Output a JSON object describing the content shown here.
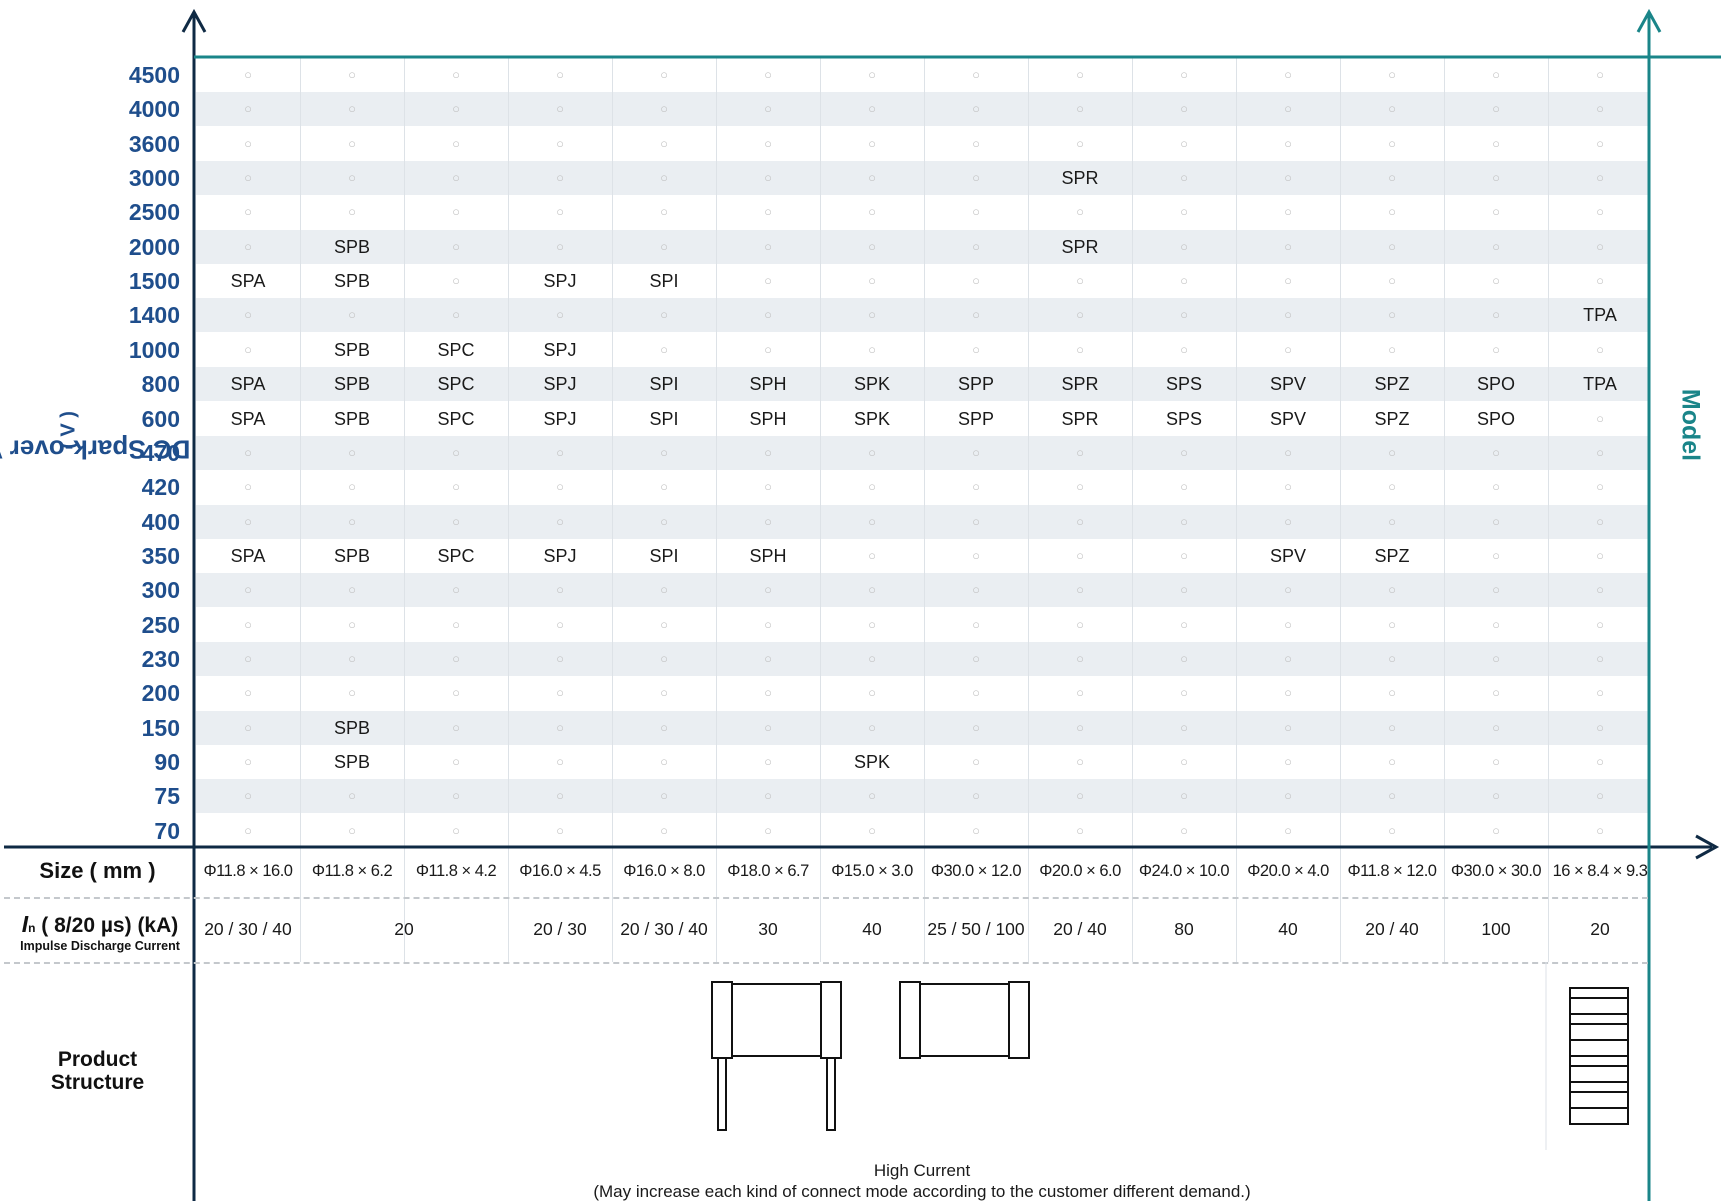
{
  "chart_data": {
    "type": "table",
    "y_title": "DC Spark-over Voltage",
    "y_unit": "( V )",
    "right_title": "Model",
    "voltages": [
      "4500",
      "4000",
      "3600",
      "3000",
      "2500",
      "2000",
      "1500",
      "1400",
      "1000",
      "800",
      "600",
      "470",
      "420",
      "400",
      "350",
      "300",
      "250",
      "230",
      "200",
      "150",
      "90",
      "75",
      "70"
    ],
    "models": [
      "SPA",
      "SPB",
      "SPC",
      "SPJ",
      "SPI",
      "SPH",
      "SPK",
      "SPP",
      "SPR",
      "SPS",
      "SPV",
      "SPZ",
      "SPO",
      "TPA"
    ],
    "availability": {
      "SPA": [
        "1500",
        "800",
        "600",
        "350"
      ],
      "SPB": [
        "2000",
        "1500",
        "1000",
        "800",
        "600",
        "350",
        "150",
        "90"
      ],
      "SPC": [
        "1000",
        "800",
        "600",
        "350"
      ],
      "SPJ": [
        "1500",
        "1000",
        "800",
        "600",
        "350"
      ],
      "SPI": [
        "1500",
        "800",
        "600",
        "350"
      ],
      "SPH": [
        "800",
        "600",
        "350"
      ],
      "SPK": [
        "800",
        "600",
        "90"
      ],
      "SPP": [
        "800",
        "600"
      ],
      "SPR": [
        "3000",
        "2000",
        "800",
        "600"
      ],
      "SPS": [
        "800",
        "600"
      ],
      "SPV": [
        "800",
        "600",
        "350"
      ],
      "SPZ": [
        "800",
        "600",
        "350"
      ],
      "SPO": [
        "800",
        "600"
      ],
      "TPA": [
        "1400",
        "800"
      ]
    },
    "empty_marker": "○",
    "size_label": "Size ( mm )",
    "sizes": [
      "Φ11.8 × 16.0",
      "Φ11.8 × 6.2",
      "Φ11.8 × 4.2",
      "Φ16.0 × 4.5",
      "Φ16.0 × 8.0",
      "Φ18.0 × 6.7",
      "Φ15.0 × 3.0",
      "Φ30.0 × 12.0",
      "Φ20.0 × 6.0",
      "Φ24.0 × 10.0",
      "Φ20.0 × 4.0",
      "Φ11.8 × 12.0",
      "Φ30.0 × 30.0",
      "16 × 8.4 × 9.3"
    ],
    "current_label_symbol": "I",
    "current_label_sub": "n",
    "current_label_rest": "( 8/20 µs) (kA)",
    "current_label_sub2": "Impulse Discharge Current",
    "currents": [
      {
        "models": [
          "SPA"
        ],
        "value": "20 / 30 / 40"
      },
      {
        "models": [
          "SPB",
          "SPC"
        ],
        "value": "20"
      },
      {
        "models": [
          "SPJ"
        ],
        "value": "20 / 30"
      },
      {
        "models": [
          "SPI"
        ],
        "value": "20 / 30 / 40"
      },
      {
        "models": [
          "SPH"
        ],
        "value": "30"
      },
      {
        "models": [
          "SPK"
        ],
        "value": "40"
      },
      {
        "models": [
          "SPP"
        ],
        "value": "25 / 50 / 100"
      },
      {
        "models": [
          "SPR"
        ],
        "value": "20 / 40"
      },
      {
        "models": [
          "SPS"
        ],
        "value": "80"
      },
      {
        "models": [
          "SPV"
        ],
        "value": "40"
      },
      {
        "models": [
          "SPZ"
        ],
        "value": "20 / 40"
      },
      {
        "models": [
          "SPO"
        ],
        "value": "100"
      },
      {
        "models": [
          "TPA"
        ],
        "value": "20"
      }
    ],
    "structure_label_1": "Product",
    "structure_label_2": "Structure",
    "structure_note_1": "High Current",
    "structure_note_2": "(May increase each kind of connect mode according to the customer different demand.)"
  },
  "colors": {
    "axis_dark": "#0f2a44",
    "axis_teal": "#1a8589",
    "voltage_blue": "#1f4e8c",
    "band": "#eaeef2"
  }
}
